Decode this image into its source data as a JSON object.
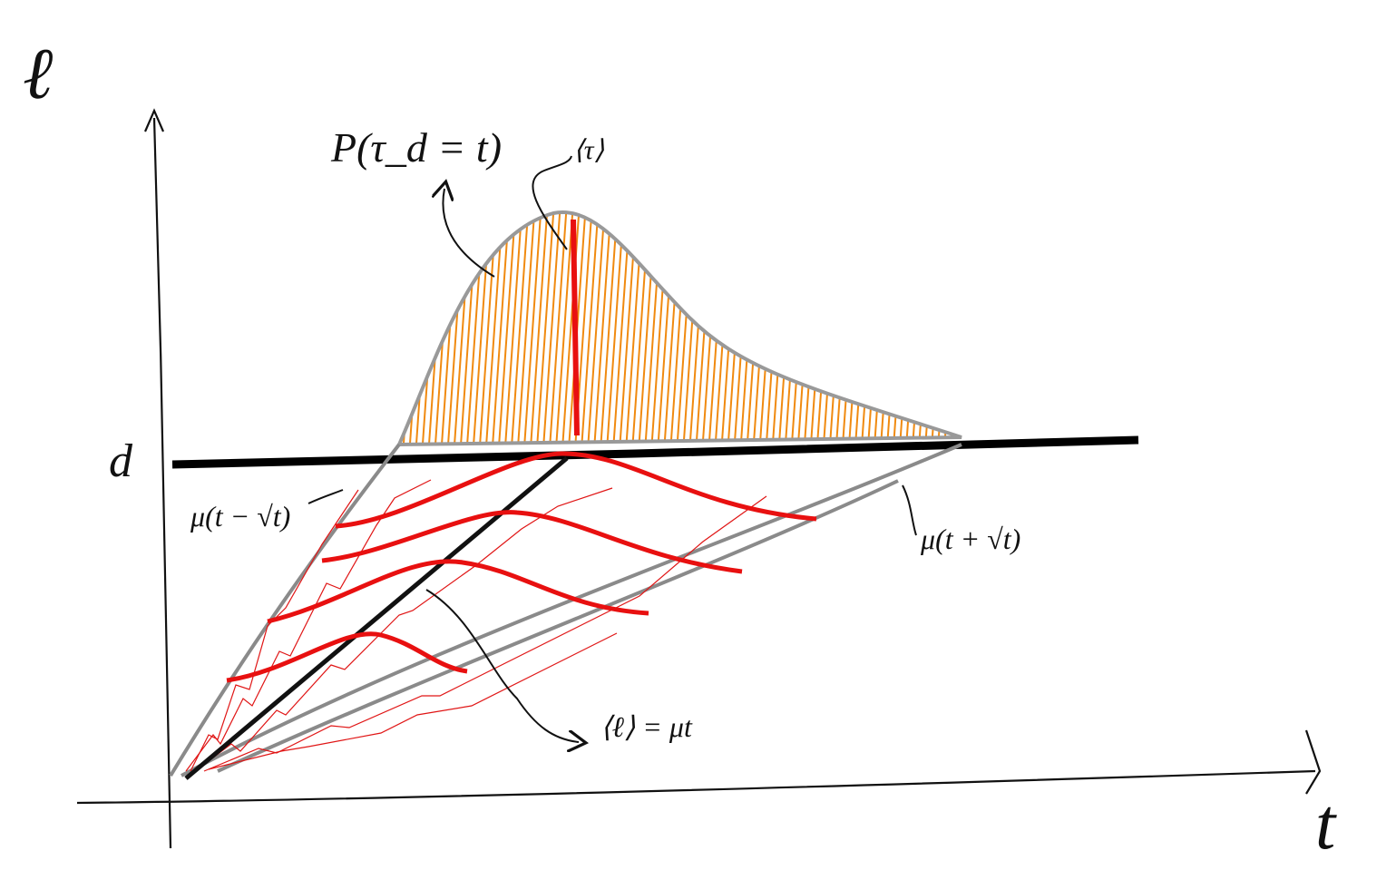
{
  "axes": {
    "y_label": "ℓ",
    "x_label": "t"
  },
  "threshold_label": "d",
  "annotations": {
    "distribution": "P(τ_d = t)",
    "mean_time": "⟨τ⟩",
    "lower_bound": "μ(t − √t)",
    "upper_bound": "μ(t + √t)",
    "mean_path": "⟨ℓ⟩ = μt"
  }
}
